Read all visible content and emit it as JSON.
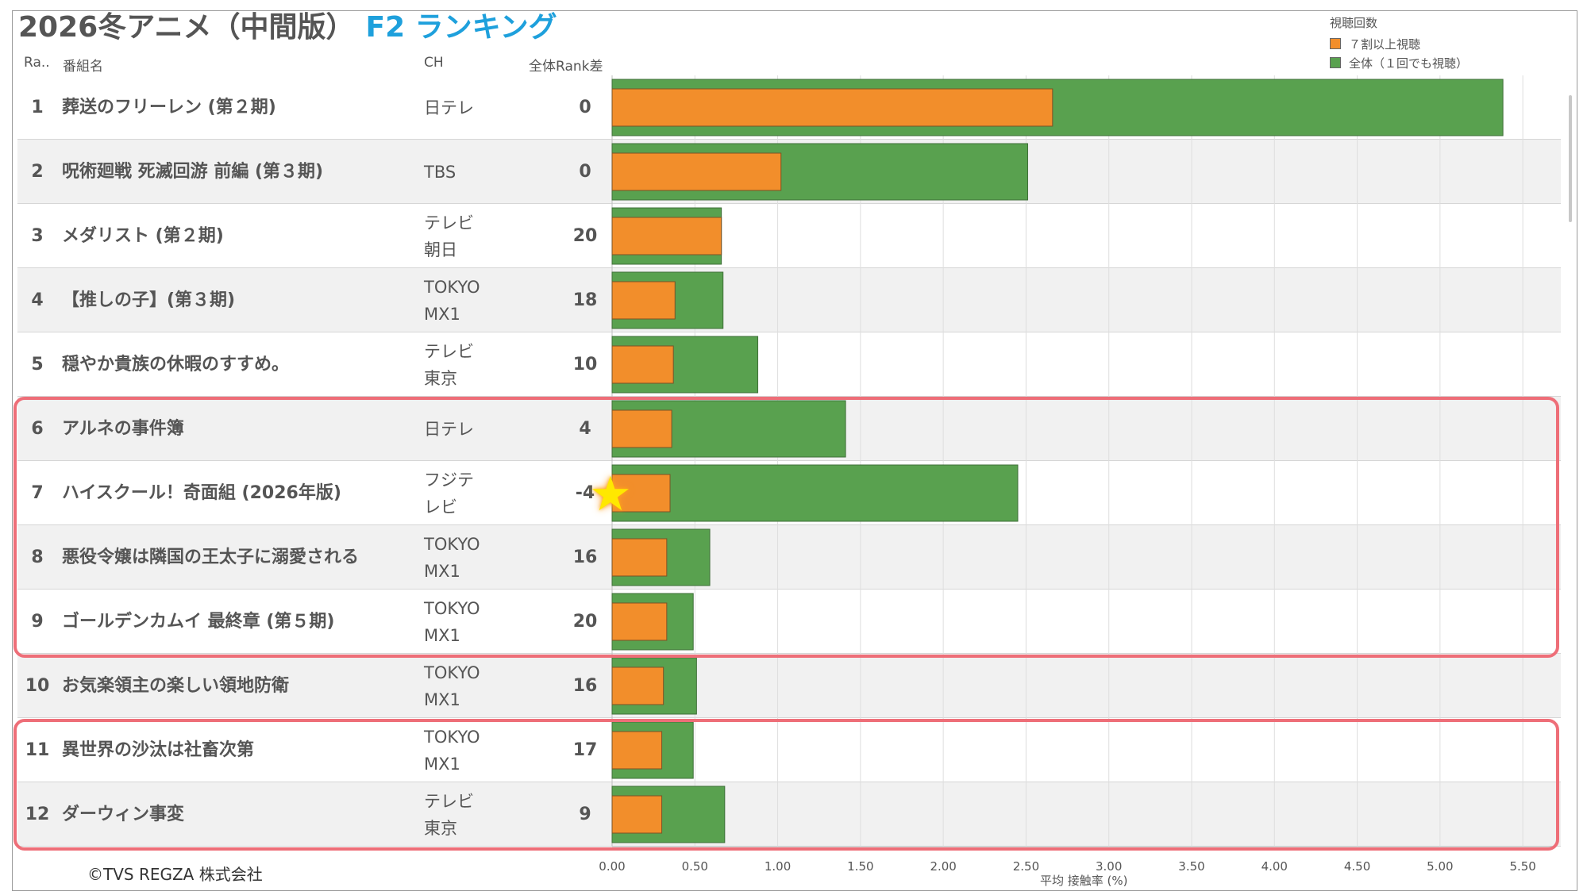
{
  "title": {
    "main": "2026冬アニメ（中間版）",
    "sub": "F2 ランキング"
  },
  "headers": {
    "rank": "Ra..",
    "name": "番組名",
    "ch": "CH",
    "diff": "全体Rank差"
  },
  "legend": {
    "title": "視聴回数",
    "items": [
      {
        "label": "７割以上視聴",
        "color": "#f28e2b"
      },
      {
        "label": "全体（１回でも視聴）",
        "color": "#59a14f"
      }
    ]
  },
  "chart_data": {
    "type": "bar",
    "orientation": "horizontal",
    "categories": [
      "葬送のフリーレン (第２期)",
      "呪術廻戦 死滅回游 前編 (第３期)",
      "メダリスト (第２期)",
      "【推しの子】(第３期)",
      "穏やか貴族の休暇のすすめ。",
      "アルネの事件簿",
      "ハイスクール！奇面組 (2026年版)",
      "悪役令嬢は隣国の王太子に溺愛される",
      "ゴールデンカムイ 最終章 (第５期)",
      "お気楽領主の楽しい領地防衛",
      "異世界の沙汰は社畜次第",
      "ダーウィン事変"
    ],
    "series": [
      {
        "name": "全体（１回でも視聴）",
        "color": "#59a14f",
        "values": [
          5.38,
          2.51,
          0.66,
          0.67,
          0.88,
          1.41,
          2.45,
          0.59,
          0.49,
          0.51,
          0.49,
          0.68
        ]
      },
      {
        "name": "７割以上視聴",
        "color": "#f28e2b",
        "values": [
          2.66,
          1.02,
          0.66,
          0.38,
          0.37,
          0.36,
          0.35,
          0.33,
          0.33,
          0.31,
          0.3,
          0.3
        ]
      }
    ],
    "xlabel": "平均 接触率 (%)",
    "xlim": [
      0,
      5.6
    ],
    "xticks": [
      "0.00",
      "0.50",
      "1.00",
      "1.50",
      "2.00",
      "2.50",
      "3.00",
      "3.50",
      "4.00",
      "4.50",
      "5.00",
      "5.50"
    ],
    "grid": true
  },
  "rows": [
    {
      "rank": "1",
      "name": "葬送のフリーレン (第２期)",
      "ch": "日テレ",
      "diff": "0"
    },
    {
      "rank": "2",
      "name": "呪術廻戦 死滅回游 前編 (第３期)",
      "ch": "TBS",
      "diff": "0"
    },
    {
      "rank": "3",
      "name": "メダリスト (第２期)",
      "ch": "テレビ朝日",
      "diff": "20"
    },
    {
      "rank": "4",
      "name": "【推しの子】(第３期)",
      "ch": "TOKYO MX1",
      "diff": "18"
    },
    {
      "rank": "5",
      "name": "穏やか貴族の休暇のすすめ。",
      "ch": "テレビ東京",
      "diff": "10"
    },
    {
      "rank": "6",
      "name": "アルネの事件簿",
      "ch": "日テレ",
      "diff": "4"
    },
    {
      "rank": "7",
      "name": "ハイスクール！奇面組 (2026年版)",
      "ch": "フジテレビ",
      "diff": "-4"
    },
    {
      "rank": "8",
      "name": "悪役令嬢は隣国の王太子に溺愛される",
      "ch": "TOKYO MX1",
      "diff": "16"
    },
    {
      "rank": "9",
      "name": "ゴールデンカムイ 最終章 (第５期)",
      "ch": "TOKYO MX1",
      "diff": "20"
    },
    {
      "rank": "10",
      "name": "お気楽領主の楽しい領地防衛",
      "ch": "TOKYO MX1",
      "diff": "16"
    },
    {
      "rank": "11",
      "name": "異世界の沙汰は社畜次第",
      "ch": "TOKYO MX1",
      "diff": "17"
    },
    {
      "rank": "12",
      "name": "ダーウィン事変",
      "ch": "テレビ東京",
      "diff": "9"
    }
  ],
  "footer": {
    "copyright": "©TVS REGZA 株式会社"
  }
}
